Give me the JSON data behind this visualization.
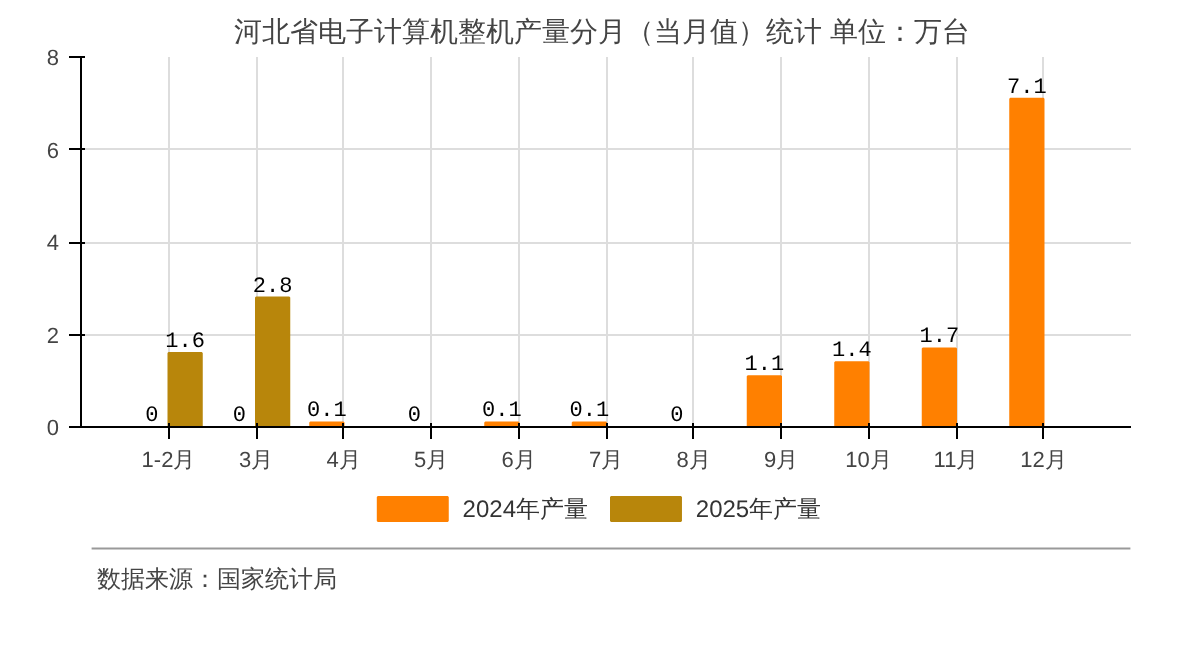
{
  "chart_data": {
    "type": "bar",
    "title": "河北省电子计算机整机产量分月（当月值）统计  单位：万台",
    "categories": [
      "1-2月",
      "3月",
      "4月",
      "5月",
      "6月",
      "7月",
      "8月",
      "9月",
      "10月",
      "11月",
      "12月"
    ],
    "series": [
      {
        "name": "2024年产量",
        "color": "#ff8000",
        "values": [
          0,
          0,
          0.1,
          0,
          0.1,
          0.1,
          0,
          1.1,
          1.4,
          1.7,
          7.1
        ]
      },
      {
        "name": "2025年产量",
        "color": "#b8860b",
        "values": [
          1.6,
          2.8,
          null,
          null,
          null,
          null,
          null,
          null,
          null,
          null,
          null
        ]
      }
    ],
    "ylim": [
      0,
      8
    ],
    "yticks": [
      0,
      2,
      4,
      6,
      8
    ],
    "grid": true,
    "legend": "bottom",
    "data_labels": true,
    "annotations": [
      "数据来源：国家统计局"
    ]
  }
}
